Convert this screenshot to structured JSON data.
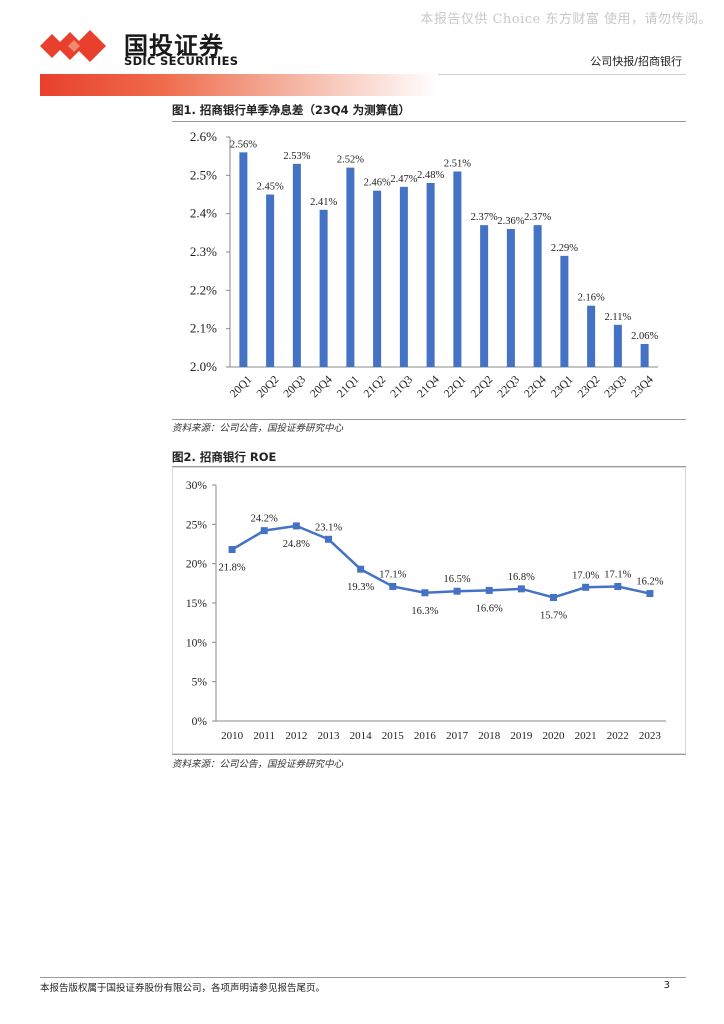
{
  "watermark": "本报告仅供 Choice 东方财富 使用，请勿传阅。",
  "logo": {
    "cn": "国投证券",
    "en": "SDIC SECURITIES"
  },
  "header": {
    "category": "公司快报/招商银行"
  },
  "figure1": {
    "title": "图1. 招商银行单季净息差（23Q4 为测算值）",
    "source": "资料来源：公司公告，国投证券研究中心"
  },
  "figure2": {
    "title": "图2. 招商银行 ROE",
    "source": "资料来源：公司公告，国投证券研究中心"
  },
  "chart_data": [
    {
      "type": "bar",
      "title": "招商银行单季净息差（23Q4 为测算值）",
      "categories": [
        "20Q1",
        "20Q2",
        "20Q3",
        "20Q4",
        "21Q1",
        "21Q2",
        "21Q3",
        "21Q4",
        "22Q1",
        "22Q2",
        "22Q3",
        "22Q4",
        "23Q1",
        "23Q2",
        "23Q3",
        "23Q4"
      ],
      "values": [
        2.56,
        2.45,
        2.53,
        2.41,
        2.52,
        2.46,
        2.47,
        2.48,
        2.51,
        2.37,
        2.36,
        2.37,
        2.29,
        2.16,
        2.11,
        2.06
      ],
      "labels": [
        "2.56%",
        "2.45%",
        "2.53%",
        "2.41%",
        "2.52%",
        "2.46%",
        "2.47%",
        "2.48%",
        "2.51%",
        "2.37%",
        "2.36%",
        "2.37%",
        "2.29%",
        "2.16%",
        "2.11%",
        "2.06%"
      ],
      "ylim": [
        2.0,
        2.6
      ],
      "yticks": [
        "2.0%",
        "2.1%",
        "2.2%",
        "2.3%",
        "2.4%",
        "2.5%",
        "2.6%"
      ],
      "color": "#4472c4"
    },
    {
      "type": "line",
      "title": "招商银行 ROE",
      "categories": [
        "2010",
        "2011",
        "2012",
        "2013",
        "2014",
        "2015",
        "2016",
        "2017",
        "2018",
        "2019",
        "2020",
        "2021",
        "2022",
        "2023"
      ],
      "values": [
        21.8,
        24.2,
        24.8,
        23.1,
        19.3,
        17.1,
        16.3,
        16.5,
        16.6,
        16.8,
        15.7,
        17.0,
        17.1,
        16.2
      ],
      "labels": [
        "21.8%",
        "24.2%",
        "24.8%",
        "23.1%",
        "19.3%",
        "17.1%",
        "16.3%",
        "16.5%",
        "16.6%",
        "16.8%",
        "15.7%",
        "17.0%",
        "17.1%",
        "16.2%"
      ],
      "ylim": [
        0,
        30
      ],
      "yticks": [
        "0%",
        "5%",
        "10%",
        "15%",
        "20%",
        "25%",
        "30%"
      ],
      "color": "#4472c4"
    }
  ],
  "footer": {
    "disclaimer": "本报告版权属于国投证券股份有限公司，各项声明请参见报告尾页。",
    "page": "3"
  }
}
